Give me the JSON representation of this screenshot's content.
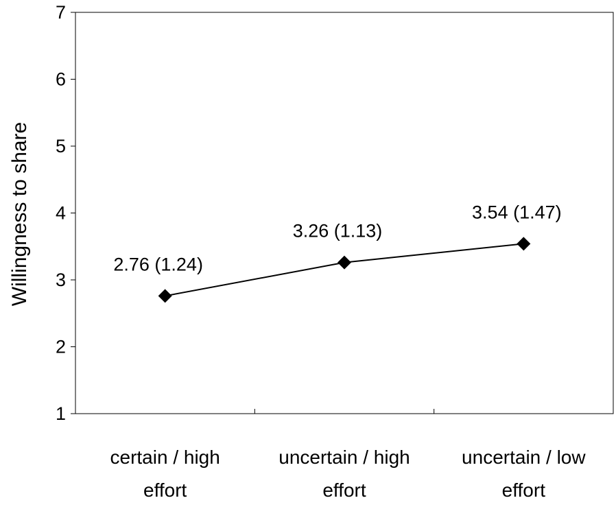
{
  "chart_data": {
    "type": "line",
    "title": "",
    "xlabel": "",
    "ylabel": "Willingness to share",
    "ylim": [
      1,
      7
    ],
    "y_ticks": [
      1,
      2,
      3,
      4,
      5,
      6,
      7
    ],
    "grid": false,
    "categories": [
      [
        "certain / high",
        "effort"
      ],
      [
        "uncertain / high",
        "effort"
      ],
      [
        "uncertain / low",
        "effort"
      ]
    ],
    "values": [
      2.76,
      3.26,
      3.54
    ],
    "data_labels": [
      "2.76 (1.24)",
      "3.26 (1.13)",
      "3.54 (1.47)"
    ],
    "marker": "diamond",
    "line_color": "#000000"
  }
}
